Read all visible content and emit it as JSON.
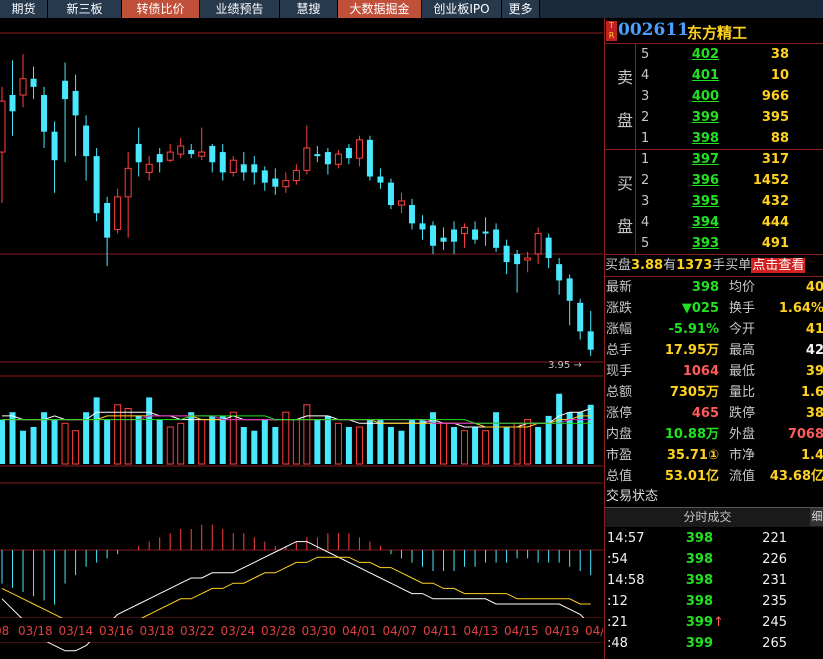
{
  "nav": {
    "tabs": [
      {
        "label": "期货",
        "active": false,
        "w": 48
      },
      {
        "label": "新三板",
        "active": false,
        "w": 74
      },
      {
        "label": "转债比价",
        "active": true,
        "w": 78
      },
      {
        "label": "业绩预告",
        "active": false,
        "w": 80
      },
      {
        "label": "慧搜",
        "active": false,
        "w": 58
      },
      {
        "label": "大数据掘金",
        "active": true,
        "w": 84
      },
      {
        "label": "创业板IPO",
        "active": false,
        "w": 80
      },
      {
        "label": "更多",
        "active": false,
        "w": 38
      }
    ]
  },
  "chart": {
    "price_label": "3.95",
    "price_arrow": "→",
    "dates": [
      "03/18",
      "03/14",
      "03/16",
      "03/18",
      "03/22",
      "03/24",
      "03/28",
      "03/30",
      "04/01",
      "04/07",
      "04/11",
      "04/13",
      "04/15",
      "04/19",
      "04/21"
    ],
    "date_partial_left": "08",
    "candles": [
      {
        "o": 4.3,
        "c": 4.55,
        "h": 4.62,
        "l": 4.05
      },
      {
        "o": 4.58,
        "c": 4.5,
        "h": 4.75,
        "l": 4.38
      },
      {
        "o": 4.58,
        "c": 4.66,
        "h": 4.78,
        "l": 4.52
      },
      {
        "o": 4.66,
        "c": 4.62,
        "h": 4.72,
        "l": 4.56
      },
      {
        "o": 4.58,
        "c": 4.4,
        "h": 4.62,
        "l": 4.32
      },
      {
        "o": 4.4,
        "c": 4.26,
        "h": 4.45,
        "l": 4.1
      },
      {
        "o": 4.65,
        "c": 4.56,
        "h": 4.74,
        "l": 4.25
      },
      {
        "o": 4.6,
        "c": 4.48,
        "h": 4.68,
        "l": 4.28
      },
      {
        "o": 4.43,
        "c": 4.28,
        "h": 4.48,
        "l": 4.16
      },
      {
        "o": 4.28,
        "c": 4.0,
        "h": 4.32,
        "l": 3.96
      },
      {
        "o": 4.05,
        "c": 3.88,
        "h": 4.08,
        "l": 3.74
      },
      {
        "o": 3.92,
        "c": 4.08,
        "h": 4.12,
        "l": 3.9
      },
      {
        "o": 4.08,
        "c": 4.22,
        "h": 4.3,
        "l": 3.88
      },
      {
        "o": 4.34,
        "c": 4.25,
        "h": 4.42,
        "l": 4.18
      },
      {
        "o": 4.2,
        "c": 4.24,
        "h": 4.28,
        "l": 4.16
      },
      {
        "o": 4.29,
        "c": 4.25,
        "h": 4.32,
        "l": 4.2
      },
      {
        "o": 4.26,
        "c": 4.3,
        "h": 4.34,
        "l": 4.25
      },
      {
        "o": 4.29,
        "c": 4.33,
        "h": 4.37,
        "l": 4.27
      },
      {
        "o": 4.31,
        "c": 4.29,
        "h": 4.34,
        "l": 4.27
      },
      {
        "o": 4.28,
        "c": 4.3,
        "h": 4.42,
        "l": 4.26
      },
      {
        "o": 4.33,
        "c": 4.25,
        "h": 4.34,
        "l": 4.2
      },
      {
        "o": 4.3,
        "c": 4.2,
        "h": 4.34,
        "l": 4.16
      },
      {
        "o": 4.2,
        "c": 4.26,
        "h": 4.28,
        "l": 4.18
      },
      {
        "o": 4.24,
        "c": 4.2,
        "h": 4.3,
        "l": 4.16
      },
      {
        "o": 4.24,
        "c": 4.2,
        "h": 4.28,
        "l": 4.14
      },
      {
        "o": 4.21,
        "c": 4.15,
        "h": 4.23,
        "l": 4.11
      },
      {
        "o": 4.17,
        "c": 4.13,
        "h": 4.22,
        "l": 4.09
      },
      {
        "o": 4.13,
        "c": 4.16,
        "h": 4.2,
        "l": 4.1
      },
      {
        "o": 4.16,
        "c": 4.21,
        "h": 4.24,
        "l": 4.14
      },
      {
        "o": 4.21,
        "c": 4.32,
        "h": 4.43,
        "l": 4.19
      },
      {
        "o": 4.29,
        "c": 4.28,
        "h": 4.33,
        "l": 4.25
      },
      {
        "o": 4.3,
        "c": 4.24,
        "h": 4.32,
        "l": 4.19
      },
      {
        "o": 4.24,
        "c": 4.29,
        "h": 4.31,
        "l": 4.22
      },
      {
        "o": 4.32,
        "c": 4.27,
        "h": 4.34,
        "l": 4.24
      },
      {
        "o": 4.27,
        "c": 4.36,
        "h": 4.38,
        "l": 4.23
      },
      {
        "o": 4.36,
        "c": 4.18,
        "h": 4.38,
        "l": 4.16
      },
      {
        "o": 4.18,
        "c": 4.15,
        "h": 4.22,
        "l": 4.12
      },
      {
        "o": 4.15,
        "c": 4.04,
        "h": 4.17,
        "l": 4.02
      },
      {
        "o": 4.04,
        "c": 4.06,
        "h": 4.1,
        "l": 4.0
      },
      {
        "o": 4.04,
        "c": 3.95,
        "h": 4.07,
        "l": 3.92
      },
      {
        "o": 3.95,
        "c": 3.92,
        "h": 3.99,
        "l": 3.87
      },
      {
        "o": 3.94,
        "c": 3.84,
        "h": 3.96,
        "l": 3.8
      },
      {
        "o": 3.88,
        "c": 3.86,
        "h": 3.93,
        "l": 3.82
      },
      {
        "o": 3.92,
        "c": 3.86,
        "h": 3.96,
        "l": 3.8
      },
      {
        "o": 3.9,
        "c": 3.93,
        "h": 3.95,
        "l": 3.83
      },
      {
        "o": 3.92,
        "c": 3.87,
        "h": 3.96,
        "l": 3.85
      },
      {
        "o": 3.91,
        "c": 3.9,
        "h": 3.98,
        "l": 3.84
      },
      {
        "o": 3.92,
        "c": 3.83,
        "h": 3.95,
        "l": 3.81
      },
      {
        "o": 3.84,
        "c": 3.76,
        "h": 3.87,
        "l": 3.7
      },
      {
        "o": 3.8,
        "c": 3.75,
        "h": 3.82,
        "l": 3.61
      },
      {
        "o": 3.77,
        "c": 3.78,
        "h": 3.81,
        "l": 3.71
      },
      {
        "o": 3.8,
        "c": 3.9,
        "h": 3.93,
        "l": 3.75
      },
      {
        "o": 3.88,
        "c": 3.78,
        "h": 3.9,
        "l": 3.73
      },
      {
        "o": 3.75,
        "c": 3.67,
        "h": 3.78,
        "l": 3.6
      },
      {
        "o": 3.68,
        "c": 3.57,
        "h": 3.7,
        "l": 3.45
      },
      {
        "o": 3.56,
        "c": 3.42,
        "h": 3.58,
        "l": 3.38
      },
      {
        "o": 3.42,
        "c": 3.33,
        "h": 3.52,
        "l": 3.3
      }
    ],
    "volume": [
      12,
      14,
      9,
      10,
      14,
      12,
      11,
      9,
      14,
      18,
      12,
      16,
      15,
      13,
      18,
      12,
      10,
      11,
      14,
      12,
      13,
      13,
      14,
      10,
      9,
      12,
      10,
      14,
      12,
      16,
      12,
      13,
      11,
      10,
      10,
      12,
      12,
      10,
      9,
      12,
      12,
      14,
      11,
      10,
      9,
      10,
      9,
      14,
      10,
      11,
      12,
      10,
      13,
      19,
      14,
      14,
      16
    ],
    "volume_red": [
      false,
      false,
      false,
      false,
      false,
      false,
      true,
      true,
      false,
      false,
      false,
      true,
      true,
      false,
      false,
      false,
      true,
      true,
      false,
      true,
      false,
      false,
      true,
      false,
      false,
      false,
      false,
      true,
      true,
      true,
      false,
      false,
      true,
      false,
      true,
      false,
      false,
      false,
      false,
      false,
      false,
      false,
      true,
      false,
      true,
      false,
      true,
      false,
      false,
      true,
      true,
      false,
      false,
      false,
      false,
      false,
      false
    ],
    "macd": [
      -8,
      -9,
      -10,
      -11,
      -12,
      -13,
      -8,
      -6,
      -4,
      -3,
      -2,
      -1,
      0,
      1,
      2,
      3,
      4,
      5,
      5,
      6,
      6,
      5,
      4,
      4,
      3,
      2,
      1,
      1,
      2,
      3,
      3,
      4,
      4,
      4,
      3,
      2,
      1,
      -1,
      -2,
      -3,
      -4,
      -5,
      -5,
      -5,
      -4,
      -4,
      -3,
      -3,
      -3,
      -2,
      -2,
      -3,
      -3,
      -3,
      -4,
      -5,
      -6
    ],
    "ma_vol_series": [
      {
        "color": "#ffffff",
        "values": [
          13,
          13,
          12,
          12,
          12,
          13,
          12,
          12,
          12,
          14,
          14,
          14,
          14,
          14,
          14,
          13,
          13,
          12,
          12,
          12,
          12,
          12,
          13,
          12,
          12,
          12,
          12,
          12,
          12,
          13,
          13,
          13,
          12,
          12,
          11,
          11,
          11,
          11,
          11,
          11,
          11,
          12,
          11,
          11,
          10,
          10,
          10,
          10,
          10,
          10,
          11,
          11,
          11,
          13,
          14,
          14,
          15
        ]
      },
      {
        "color": "#ffd21f",
        "values": [
          12,
          12,
          12,
          12,
          12,
          12,
          12,
          12,
          12,
          12,
          13,
          13,
          13,
          13,
          13,
          13,
          13,
          13,
          13,
          12,
          12,
          12,
          12,
          12,
          12,
          12,
          12,
          12,
          12,
          12,
          12,
          12,
          12,
          12,
          12,
          12,
          11,
          11,
          11,
          11,
          11,
          11,
          11,
          11,
          11,
          11,
          10,
          10,
          10,
          10,
          10,
          11,
          11,
          12,
          12,
          13,
          13
        ]
      },
      {
        "color": "#d020d0",
        "values": [
          12,
          12,
          12,
          12,
          12,
          12,
          12,
          12,
          12,
          12,
          12,
          12,
          12,
          12,
          13,
          13,
          13,
          13,
          13,
          13,
          13,
          12,
          12,
          12,
          12,
          12,
          12,
          12,
          12,
          12,
          12,
          12,
          12,
          12,
          12,
          12,
          12,
          12,
          12,
          12,
          12,
          11,
          11,
          11,
          11,
          11,
          11,
          11,
          11,
          11,
          11,
          11,
          11,
          11,
          12,
          12,
          12
        ]
      },
      {
        "color": "#20e020",
        "values": [
          12,
          12,
          12,
          12,
          12,
          12,
          12,
          12,
          12,
          12,
          12,
          12,
          12,
          12,
          12,
          12,
          12,
          12,
          13,
          13,
          13,
          13,
          13,
          13,
          13,
          13,
          12,
          12,
          12,
          12,
          12,
          12,
          12,
          12,
          12,
          12,
          12,
          12,
          12,
          12,
          12,
          12,
          12,
          12,
          12,
          11,
          11,
          11,
          11,
          11,
          11,
          11,
          11,
          11,
          11,
          11,
          11
        ]
      }
    ],
    "dif": [
      -4,
      -6,
      -8,
      -10,
      -12,
      -13,
      -14,
      -14,
      -13,
      -11,
      -9,
      -7,
      -6,
      -5,
      -4,
      -3,
      -2,
      -1,
      0,
      0,
      1,
      1,
      1,
      2,
      3,
      4,
      5,
      6,
      7,
      7,
      6,
      5,
      4,
      3,
      2,
      1,
      0,
      -1,
      -2,
      -3,
      -3,
      -4,
      -4,
      -4,
      -4,
      -4,
      -4,
      -5,
      -5,
      -5,
      -5,
      -5,
      -5,
      -5,
      -6,
      -7,
      -9
    ],
    "dea": [
      -2,
      -3,
      -4,
      -5,
      -6,
      -7,
      -8,
      -9,
      -9,
      -9,
      -9,
      -9,
      -8,
      -8,
      -7,
      -6,
      -5,
      -4,
      -4,
      -3,
      -2,
      -2,
      -1,
      -1,
      0,
      1,
      1,
      2,
      3,
      3,
      4,
      4,
      4,
      4,
      3,
      3,
      2,
      2,
      1,
      0,
      -1,
      -1,
      -2,
      -2,
      -3,
      -3,
      -3,
      -3,
      -3,
      -4,
      -4,
      -4,
      -4,
      -4,
      -4,
      -5,
      -5
    ]
  },
  "stock": {
    "code": "002611",
    "name": "东方精工",
    "badge_top": "T",
    "badge_bottom": "R"
  },
  "orderbook": {
    "sell_label_1": "卖",
    "sell_label_2": "盘",
    "buy_label_1": "买",
    "buy_label_2": "盘",
    "sell": [
      {
        "lvl": "5",
        "price": "402",
        "vol": "38"
      },
      {
        "lvl": "4",
        "price": "401",
        "vol": "10"
      },
      {
        "lvl": "3",
        "price": "400",
        "vol": "966"
      },
      {
        "lvl": "2",
        "price": "399",
        "vol": "395"
      },
      {
        "lvl": "1",
        "price": "398",
        "vol": "88"
      }
    ],
    "buy": [
      {
        "lvl": "1",
        "price": "397",
        "vol": "317"
      },
      {
        "lvl": "2",
        "price": "396",
        "vol": "1452"
      },
      {
        "lvl": "3",
        "price": "395",
        "vol": "432"
      },
      {
        "lvl": "4",
        "price": "394",
        "vol": "444"
      },
      {
        "lvl": "5",
        "price": "393",
        "vol": "491"
      }
    ]
  },
  "buybanner": {
    "prefix": "买盘",
    "price": "3.88",
    "mid": "有",
    "vol": "1373",
    "suffix": "手买单",
    "link": "点击查看"
  },
  "quote": [
    {
      "l1": "最新",
      "v1": "398",
      "c1": "green",
      "l2": "均价",
      "v2": "40",
      "c2": "yellow"
    },
    {
      "l1": "涨跌",
      "v1": "▼025",
      "c1": "green",
      "l2": "换手",
      "v2": "1.64%",
      "c2": "yellow"
    },
    {
      "l1": "涨幅",
      "v1": "-5.91%",
      "c1": "green",
      "l2": "今开",
      "v2": "41",
      "c2": "yellow"
    },
    {
      "l1": "总手",
      "v1": "17.95万",
      "c1": "yellow",
      "l2": "最高",
      "v2": "42",
      "c2": "white"
    },
    {
      "l1": "现手",
      "v1": "1064",
      "c1": "red",
      "l2": "最低",
      "v2": "39",
      "c2": "yellow"
    },
    {
      "l1": "总额",
      "v1": "7305万",
      "c1": "yellow",
      "l2": "量比",
      "v2": "1.6",
      "c2": "yellow"
    },
    {
      "l1": "涨停",
      "v1": "465",
      "c1": "red",
      "l2": "跌停",
      "v2": "38",
      "c2": "yellow"
    },
    {
      "l1": "内盘",
      "v1": "10.88万",
      "c1": "green",
      "l2": "外盘",
      "v2": "7068",
      "c2": "red"
    },
    {
      "l1": "市盈",
      "v1": "35.71①",
      "c1": "yellow",
      "l2": "市净",
      "v2": "1.4",
      "c2": "yellow"
    },
    {
      "l1": "总值",
      "v1": "53.01亿",
      "c1": "yellow",
      "l2": "流值",
      "v2": "43.68亿",
      "c2": "yellow"
    }
  ],
  "trade_status_label": "交易状态",
  "ticks": {
    "title": "分时成交",
    "side_tab": "细",
    "rows": [
      {
        "t": "14:57",
        "p": "398",
        "v": "221",
        "pc": "green",
        "arrow": ""
      },
      {
        "t": ":54",
        "p": "398",
        "v": "226",
        "pc": "green",
        "arrow": ""
      },
      {
        "t": "14:58",
        "p": "398",
        "v": "231",
        "pc": "green",
        "arrow": ""
      },
      {
        "t": ":12",
        "p": "398",
        "v": "235",
        "pc": "green",
        "arrow": ""
      },
      {
        "t": ":21",
        "p": "399",
        "v": "245",
        "pc": "green",
        "arrow": "↑"
      },
      {
        "t": ":48",
        "p": "399",
        "v": "265",
        "pc": "green",
        "arrow": ""
      }
    ]
  }
}
